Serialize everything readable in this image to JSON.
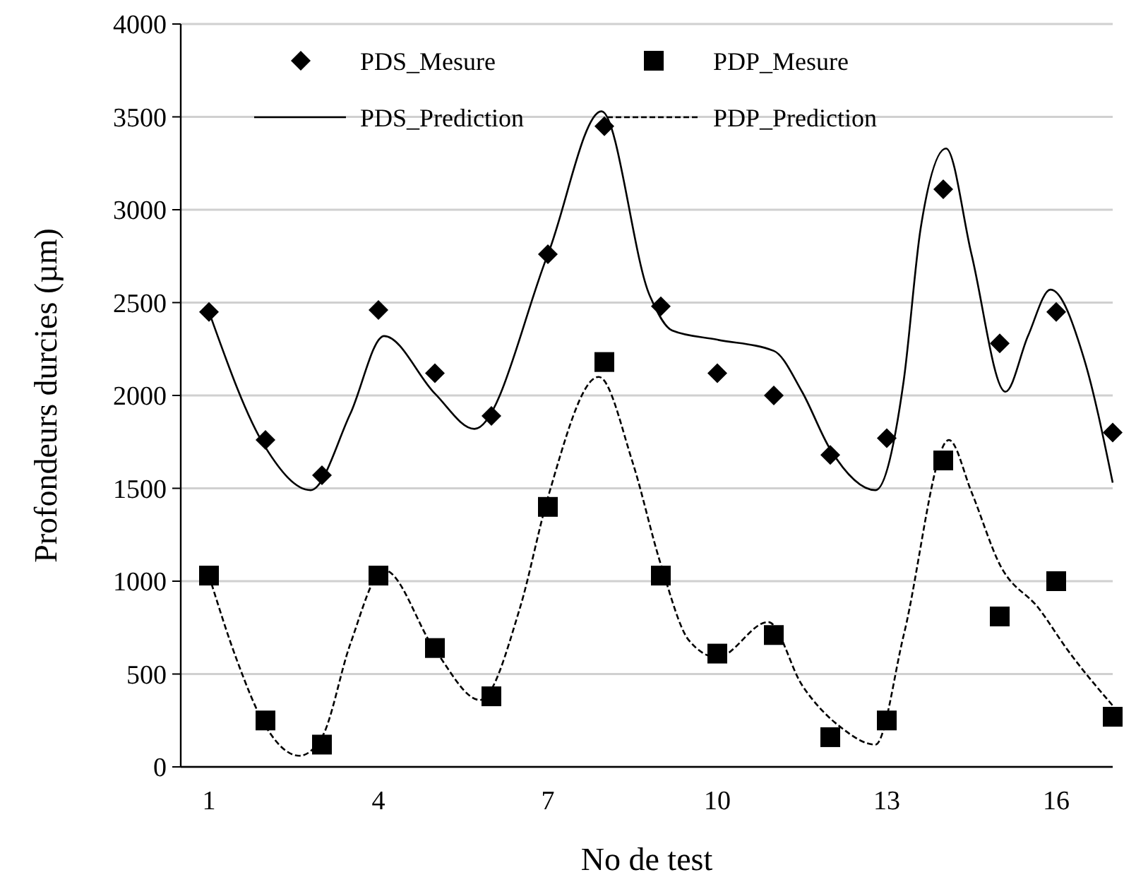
{
  "chart_data": {
    "type": "scatter",
    "xlabel": "No de test",
    "ylabel": "Profondeurs durcies (µm)",
    "x": [
      1,
      2,
      3,
      4,
      5,
      6,
      7,
      8,
      9,
      10,
      11,
      12,
      13,
      14,
      15,
      16,
      17
    ],
    "xlim": [
      0.5,
      17
    ],
    "xticks": [
      1,
      4,
      7,
      10,
      13,
      16
    ],
    "ylim": [
      0,
      4000
    ],
    "yticks": [
      0,
      500,
      1000,
      1500,
      2000,
      2500,
      3000,
      3500,
      4000
    ],
    "grid": "y",
    "legend": "top",
    "series": [
      {
        "name": "PDS_Mesure",
        "marker": "diamond",
        "color": "#000000",
        "values": [
          2450,
          1760,
          1570,
          2460,
          2120,
          1890,
          2760,
          3450,
          2480,
          2120,
          2000,
          1680,
          1770,
          3110,
          2280,
          2450,
          1800
        ]
      },
      {
        "name": "PDP_Mesure",
        "marker": "square",
        "color": "#000000",
        "values": [
          1030,
          250,
          120,
          1030,
          640,
          380,
          1400,
          2180,
          1030,
          610,
          710,
          160,
          250,
          1650,
          810,
          1000,
          270
        ]
      },
      {
        "name": "PDS_Prediction",
        "type": "line",
        "line_style": "solid",
        "marker": "none",
        "color": "#000000",
        "x": [
          1,
          2,
          2.8,
          3.5,
          4.1,
          5,
          5.7,
          7,
          7.95,
          8.8,
          9.2,
          10,
          11,
          11.5,
          12,
          12.8,
          13.3,
          13.6,
          14.05,
          14.5,
          15.1,
          15.5,
          15.9,
          16.5,
          17
        ],
        "values": [
          2450,
          1720,
          1490,
          1900,
          2320,
          2010,
          1820,
          2760,
          3530,
          2540,
          2350,
          2300,
          2240,
          2020,
          1710,
          1490,
          2080,
          2900,
          3330,
          2760,
          2020,
          2320,
          2570,
          2190,
          1530
        ]
      },
      {
        "name": "PDP_Prediction",
        "type": "line",
        "line_style": "dashed",
        "marker": "none",
        "color": "#000000",
        "x": [
          1,
          1.5,
          2,
          2.6,
          3,
          3.5,
          4.1,
          5,
          5.8,
          6.5,
          7,
          7.9,
          8.5,
          9,
          9.5,
          10,
          10.9,
          11.5,
          12.2,
          12.8,
          13.3,
          14.1,
          14.5,
          15,
          15.7,
          16.2,
          17
        ],
        "values": [
          1030,
          570,
          220,
          60,
          160,
          660,
          1060,
          630,
          360,
          850,
          1450,
          2100,
          1640,
          1090,
          680,
          590,
          780,
          440,
          210,
          120,
          710,
          1760,
          1480,
          1090,
          850,
          630,
          330
        ]
      }
    ]
  }
}
